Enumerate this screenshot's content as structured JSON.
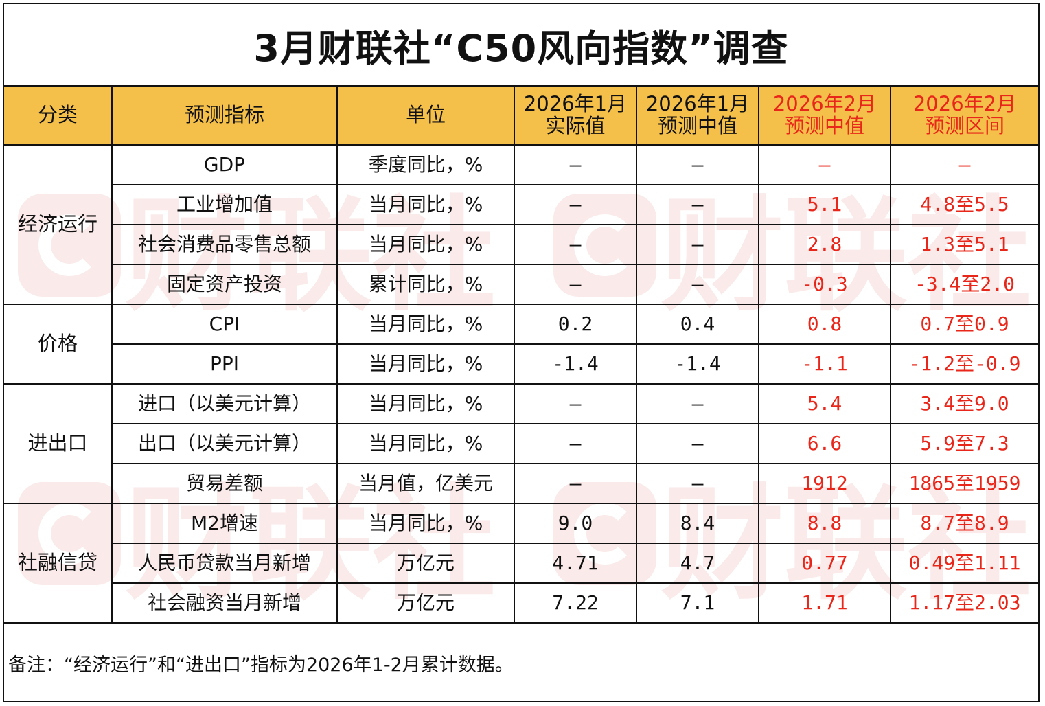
{
  "title": "3月财联社“C50风向指数”调查",
  "watermark": "财联社",
  "colors": {
    "header_bg": "#f4c04a",
    "forecast_text": "#e8261a",
    "border": "#111111"
  },
  "headers": {
    "category": "分类",
    "indicator": "预测指标",
    "unit": "单位",
    "jan_actual_l1": "2026年1月",
    "jan_actual_l2": "实际值",
    "jan_median_l1": "2026年1月",
    "jan_median_l2": "预测中值",
    "feb_median_l1": "2026年2月",
    "feb_median_l2": "预测中值",
    "feb_range_l1": "2026年2月",
    "feb_range_l2": "预测区间"
  },
  "categories": {
    "economy": "经济运行",
    "price": "价格",
    "trade": "进出口",
    "credit": "社融信贷"
  },
  "rows": [
    {
      "indicator": "GDP",
      "unit": "季度同比，%",
      "jan_actual": "—",
      "jan_median": "—",
      "feb_median": "—",
      "feb_range": "—"
    },
    {
      "indicator": "工业增加值",
      "unit": "当月同比，%",
      "jan_actual": "—",
      "jan_median": "—",
      "feb_median": "5.1",
      "feb_range": "4.8至5.5"
    },
    {
      "indicator": "社会消费品零售总额",
      "unit": "当月同比，%",
      "jan_actual": "—",
      "jan_median": "—",
      "feb_median": "2.8",
      "feb_range": "1.3至5.1"
    },
    {
      "indicator": "固定资产投资",
      "unit": "累计同比，%",
      "jan_actual": "—",
      "jan_median": "—",
      "feb_median": "-0.3",
      "feb_range": "-3.4至2.0"
    },
    {
      "indicator": "CPI",
      "unit": "当月同比，%",
      "jan_actual": "0.2",
      "jan_median": "0.4",
      "feb_median": "0.8",
      "feb_range": "0.7至0.9"
    },
    {
      "indicator": "PPI",
      "unit": "当月同比，%",
      "jan_actual": "-1.4",
      "jan_median": "-1.4",
      "feb_median": "-1.1",
      "feb_range": "-1.2至-0.9"
    },
    {
      "indicator": "进口（以美元计算）",
      "unit": "当月同比，%",
      "jan_actual": "—",
      "jan_median": "—",
      "feb_median": "5.4",
      "feb_range": "3.4至9.0"
    },
    {
      "indicator": "出口（以美元计算）",
      "unit": "当月同比，%",
      "jan_actual": "—",
      "jan_median": "—",
      "feb_median": "6.6",
      "feb_range": "5.9至7.3"
    },
    {
      "indicator": "贸易差额",
      "unit": "当月值，亿美元",
      "jan_actual": "—",
      "jan_median": "—",
      "feb_median": "1912",
      "feb_range": "1865至1959"
    },
    {
      "indicator": "M2增速",
      "unit": "当月同比，%",
      "jan_actual": "9.0",
      "jan_median": "8.4",
      "feb_median": "8.8",
      "feb_range": "8.7至8.9"
    },
    {
      "indicator": "人民币贷款当月新增",
      "unit": "万亿元",
      "jan_actual": "4.71",
      "jan_median": "4.7",
      "feb_median": "0.77",
      "feb_range": "0.49至1.11"
    },
    {
      "indicator": "社会融资当月新增",
      "unit": "万亿元",
      "jan_actual": "7.22",
      "jan_median": "7.1",
      "feb_median": "1.71",
      "feb_range": "1.17至2.03"
    }
  ],
  "note": "备注：“经济运行”和“进出口”指标为2026年1-2月累计数据。"
}
